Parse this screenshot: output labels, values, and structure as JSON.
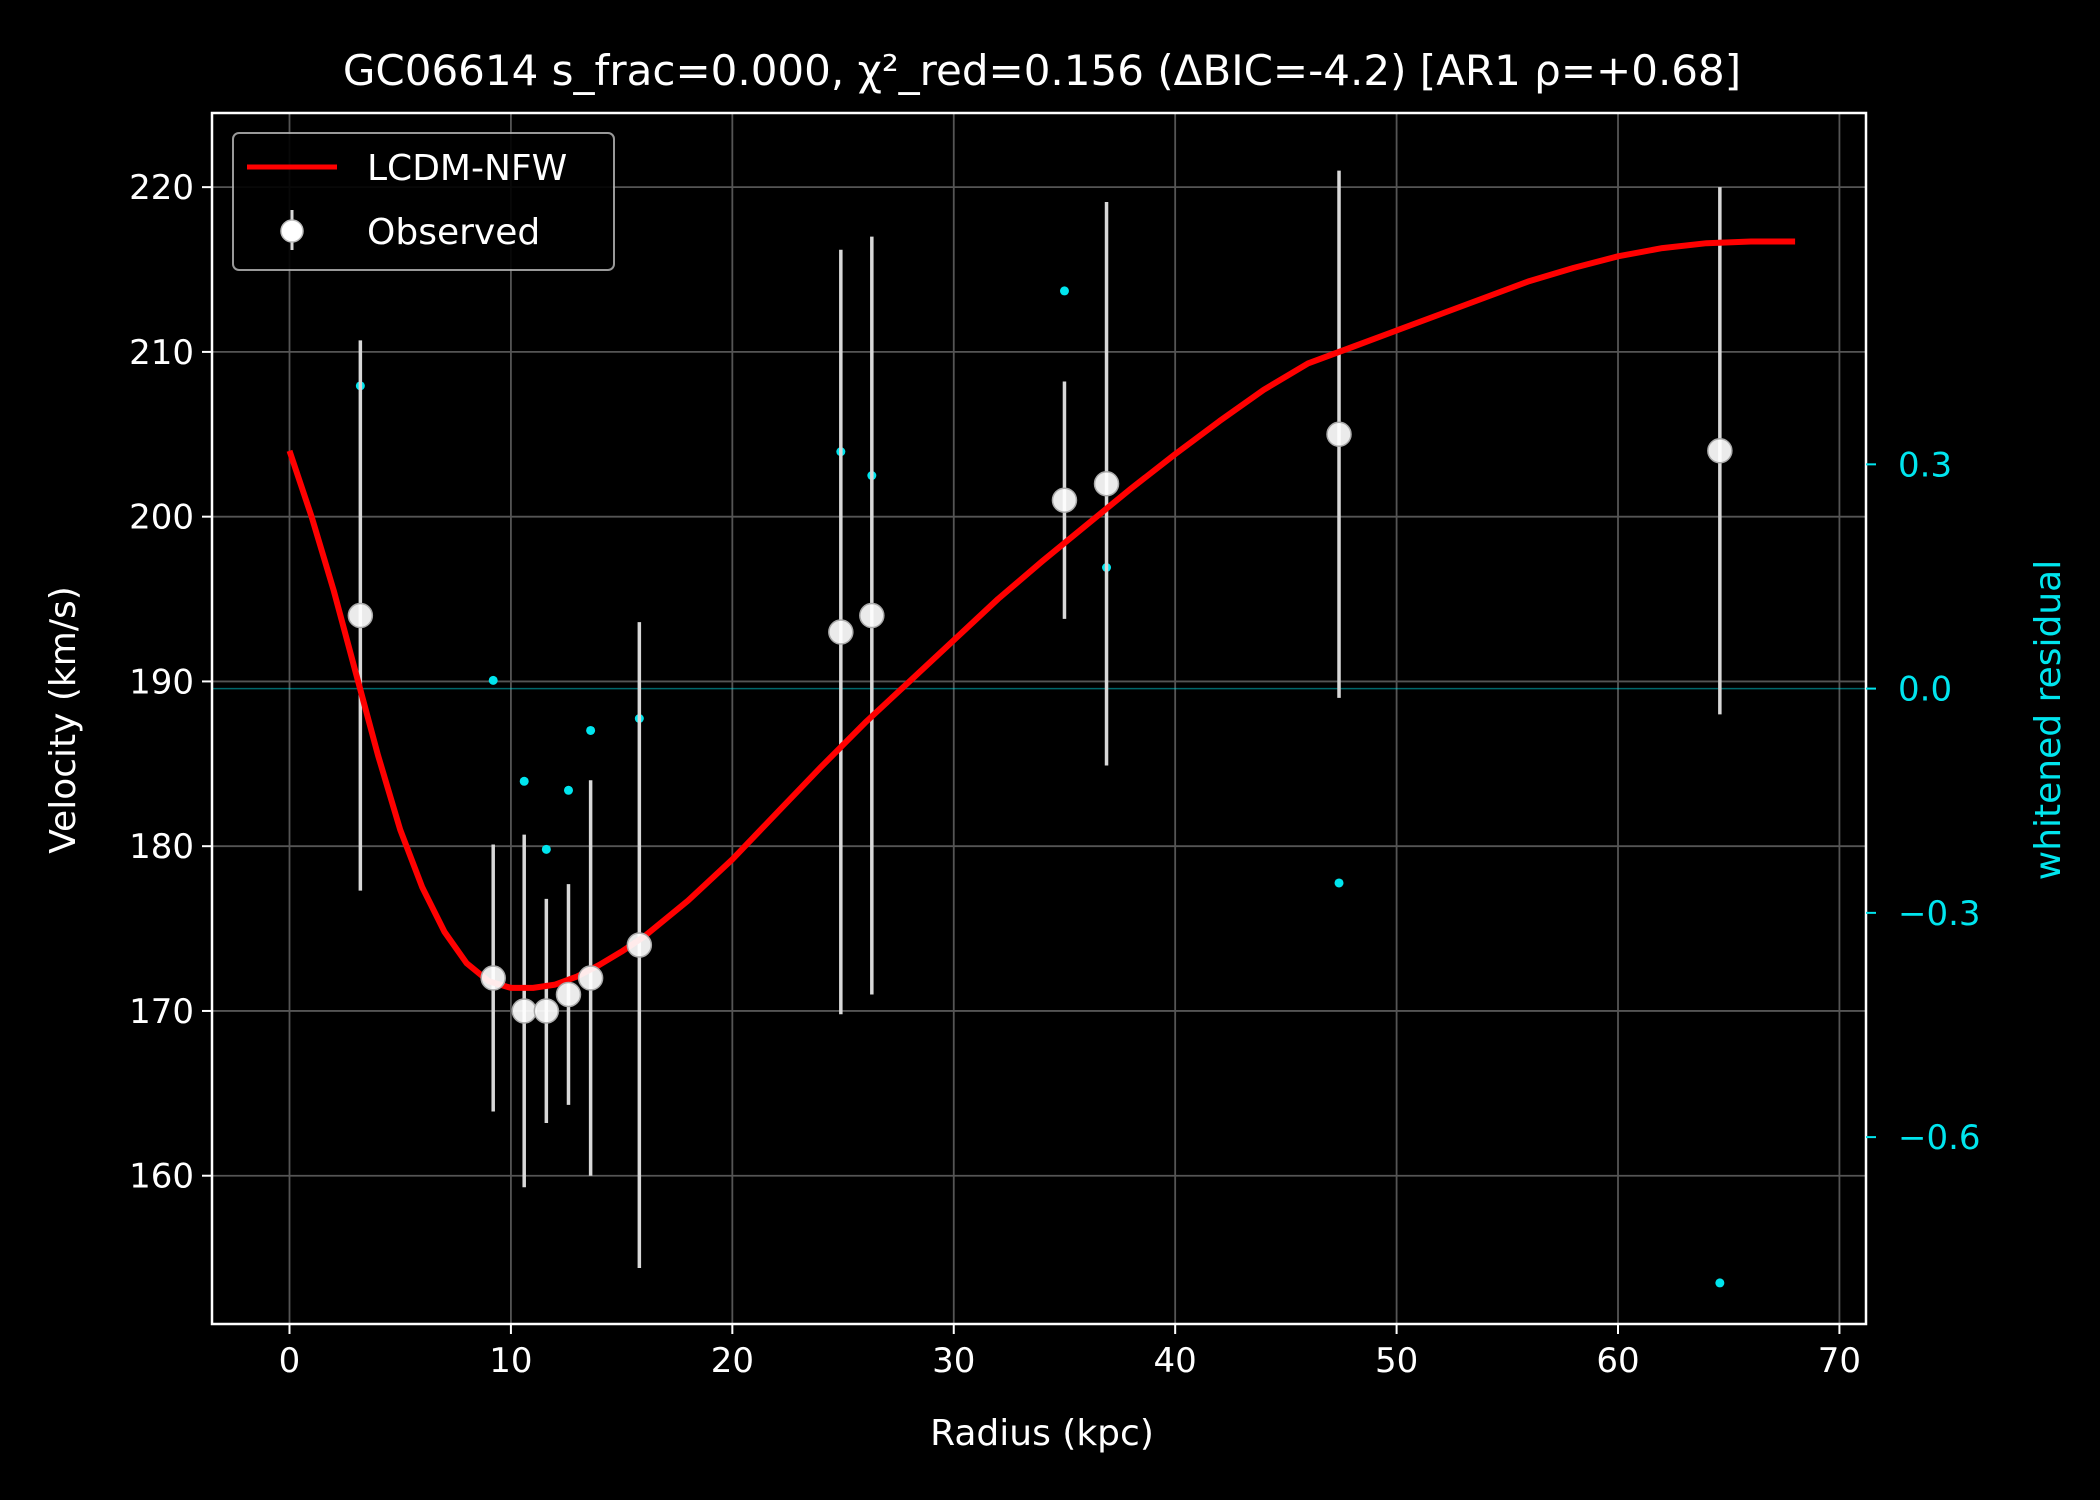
{
  "chart_data": {
    "type": "scatter",
    "title": "GC06614  s_frac=0.000, χ²_red=0.156  (ΔBIC=-4.2) [AR1 ρ=+0.68]",
    "xlabel": "Radius (kpc)",
    "ylabel": "Velocity (km/s)",
    "ylabel_right": "whitened residual",
    "xlim": [
      -3.5,
      71.2
    ],
    "ylim": [
      151,
      224.5
    ],
    "ylim_right": [
      -0.85,
      0.77
    ],
    "xticks": [
      0,
      10,
      20,
      30,
      40,
      50,
      60,
      70
    ],
    "yticks": [
      160,
      170,
      180,
      190,
      200,
      210,
      220
    ],
    "yticks_right": [
      0.3,
      0.0,
      -0.3,
      -0.6
    ],
    "ytick_labels_right": [
      "0.3",
      "0.0",
      "−0.3",
      "−0.6"
    ],
    "grid": true,
    "legend_position": "top-left",
    "colors": {
      "background": "#000000",
      "model": "#ff0000",
      "observed": "#ffffff",
      "errorbar": "#d8d8d8",
      "residual": "#00e5ee",
      "grid": "#555555"
    },
    "series": [
      {
        "name": "LCDM-NFW",
        "kind": "line",
        "x": [
          0,
          1,
          2,
          3,
          4,
          5,
          6,
          7,
          8,
          9,
          10,
          11,
          12,
          13,
          14,
          15,
          16,
          18,
          20,
          22,
          24,
          26,
          28,
          30,
          32,
          34,
          36,
          38,
          40,
          42,
          44,
          46,
          48,
          50,
          52,
          54,
          56,
          58,
          60,
          62,
          64,
          66,
          68
        ],
        "y": [
          204,
          200,
          195.5,
          190.5,
          185.5,
          181,
          177.5,
          174.8,
          172.9,
          171.8,
          171.4,
          171.4,
          171.6,
          172.1,
          172.8,
          173.6,
          174.5,
          176.7,
          179.2,
          182,
          184.8,
          187.5,
          190,
          192.5,
          195,
          197.3,
          199.5,
          201.7,
          203.8,
          205.8,
          207.7,
          209.3,
          210.3,
          211.3,
          212.3,
          213.3,
          214.3,
          215.1,
          215.8,
          216.3,
          216.6,
          216.7,
          216.7
        ]
      },
      {
        "name": "Observed",
        "kind": "errorbar",
        "x": [
          3.2,
          9.2,
          10.6,
          11.6,
          12.6,
          13.6,
          15.8,
          24.9,
          26.3,
          35,
          36.9,
          47.4,
          64.6
        ],
        "y": [
          194,
          172,
          170,
          170,
          171,
          172,
          174,
          193,
          194,
          201,
          202,
          205,
          204
        ],
        "yerr": [
          16.7,
          8.1,
          10.7,
          6.8,
          6.7,
          12,
          19.6,
          23.2,
          23,
          7.2,
          17.1,
          16,
          16
        ]
      },
      {
        "name": "whitened residual",
        "kind": "scatter",
        "axis": "right",
        "x": [
          3.2,
          9.2,
          10.6,
          11.6,
          12.6,
          13.6,
          15.8,
          24.9,
          26.3,
          35,
          36.9,
          47.4,
          64.6
        ],
        "y": [
          0.405,
          0.011,
          -0.124,
          -0.215,
          -0.136,
          -0.056,
          -0.04,
          0.317,
          0.285,
          0.532,
          0.162,
          -0.26,
          -0.795
        ]
      }
    ]
  }
}
